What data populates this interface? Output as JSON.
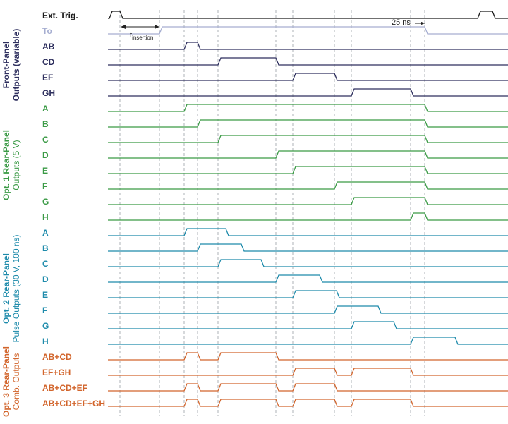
{
  "colors": {
    "black": "#1a1a1a",
    "to": "#a6aed1",
    "front": "#2e2f5e",
    "opt1": "#3a9a45",
    "opt2": "#1e8bab",
    "opt3": "#d2652c",
    "guide": "#9aa0a6"
  },
  "annotations": {
    "t_main": "t",
    "t_sub": "insertion",
    "ns25": "25 ns"
  },
  "groups": [
    {
      "id": "front",
      "line1": "Front-Panel",
      "line2": "Outputs (variable)",
      "color_key": "front"
    },
    {
      "id": "opt1",
      "line1": "Opt. 1 Rear-Panel",
      "line2": "Outputs (5 V)",
      "color_key": "opt1"
    },
    {
      "id": "opt2",
      "line1": "Opt. 2 Rear-Panel",
      "line2": "Pulse Outputs (30 V, 100 ns)",
      "color_key": "opt2"
    },
    {
      "id": "opt3",
      "line1": "Opt. 3 Rear-Panel",
      "line2": "Comb. Outputs",
      "color_key": "opt3"
    }
  ],
  "signals": [
    {
      "label": "Ext. Trig.",
      "color_key": "black"
    },
    {
      "label": "To",
      "color_key": "to"
    },
    {
      "label": "AB",
      "color_key": "front"
    },
    {
      "label": "CD",
      "color_key": "front"
    },
    {
      "label": "EF",
      "color_key": "front"
    },
    {
      "label": "GH",
      "color_key": "front"
    },
    {
      "label": "A",
      "color_key": "opt1"
    },
    {
      "label": "B",
      "color_key": "opt1"
    },
    {
      "label": "C",
      "color_key": "opt1"
    },
    {
      "label": "D",
      "color_key": "opt1"
    },
    {
      "label": "E",
      "color_key": "opt1"
    },
    {
      "label": "F",
      "color_key": "opt1"
    },
    {
      "label": "G",
      "color_key": "opt1"
    },
    {
      "label": "H",
      "color_key": "opt1"
    },
    {
      "label": "A",
      "color_key": "opt2"
    },
    {
      "label": "B",
      "color_key": "opt2"
    },
    {
      "label": "C",
      "color_key": "opt2"
    },
    {
      "label": "D",
      "color_key": "opt2"
    },
    {
      "label": "E",
      "color_key": "opt2"
    },
    {
      "label": "F",
      "color_key": "opt2"
    },
    {
      "label": "G",
      "color_key": "opt2"
    },
    {
      "label": "H",
      "color_key": "opt2"
    },
    {
      "label": "AB+CD",
      "color_key": "opt3"
    },
    {
      "label": "EF+GH",
      "color_key": "opt3"
    },
    {
      "label": "AB+CD+EF",
      "color_key": "opt3"
    },
    {
      "label": "AB+CD+EF+GH",
      "color_key": "opt3"
    }
  ]
}
